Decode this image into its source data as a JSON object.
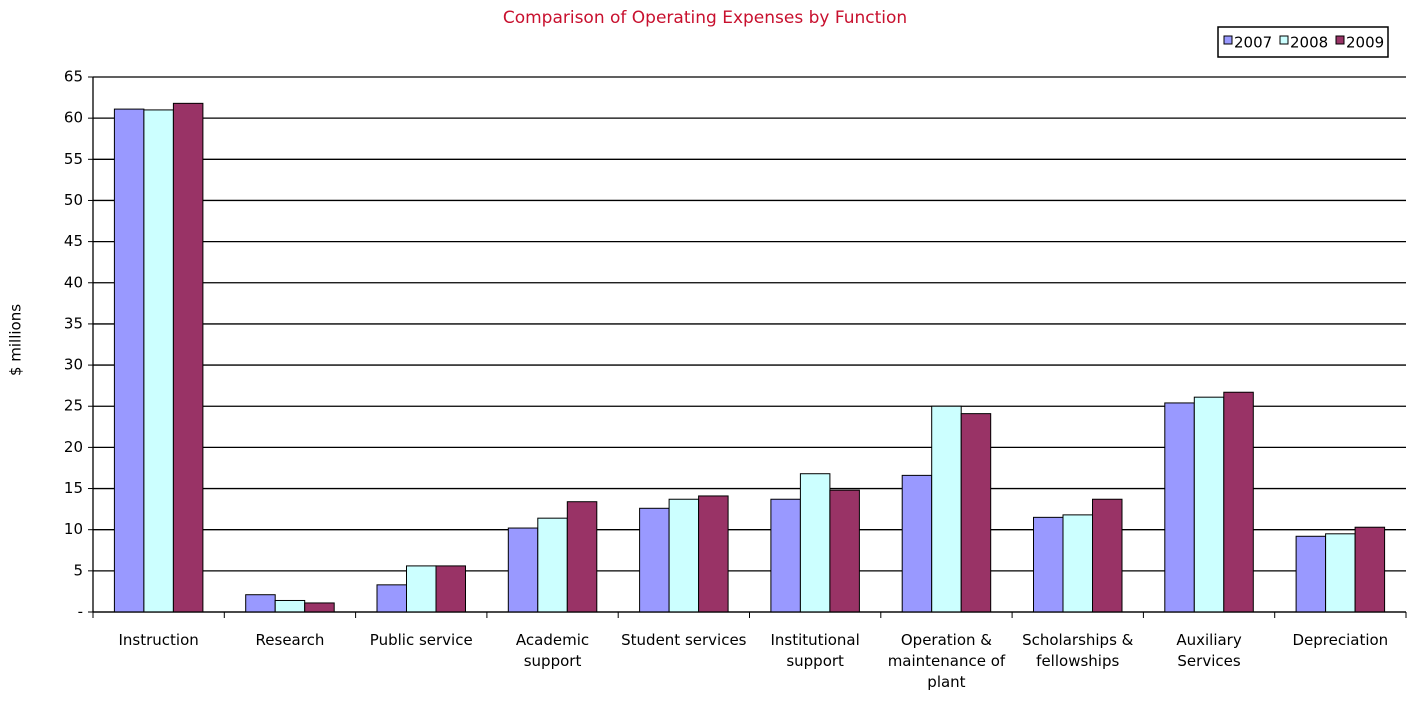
{
  "chart_data": {
    "type": "bar",
    "title": "Comparison of Operating Expenses by Function",
    "y_label": "$ millions",
    "categories": [
      "Instruction",
      "Research",
      "Public service",
      "Academic support",
      "Student services",
      "Institutional support",
      "Operation & maintenance of plant",
      "Scholarships & fellowships",
      "Auxiliary Services",
      "Depreciation"
    ],
    "series": [
      {
        "name": "2007",
        "color": "#9999ff",
        "values": [
          61.1,
          2.1,
          3.3,
          10.2,
          12.6,
          13.7,
          16.6,
          11.5,
          25.4,
          9.2
        ]
      },
      {
        "name": "2008",
        "color": "#ccffff",
        "values": [
          61,
          1.4,
          5.6,
          11.4,
          13.7,
          16.8,
          25,
          11.8,
          26.1,
          9.5
        ]
      },
      {
        "name": "2009",
        "color": "#993366",
        "values": [
          61.8,
          1.1,
          5.6,
          13.4,
          14.1,
          14.8,
          24.1,
          13.7,
          26.7,
          10.3
        ]
      }
    ],
    "ylim": [
      0,
      65
    ],
    "yticks": [
      {
        "value": 0,
        "label": "-"
      },
      5,
      10,
      15,
      20,
      25,
      30,
      35,
      40,
      45,
      50,
      55,
      60,
      65
    ],
    "grid": true,
    "legend": "top-right"
  }
}
